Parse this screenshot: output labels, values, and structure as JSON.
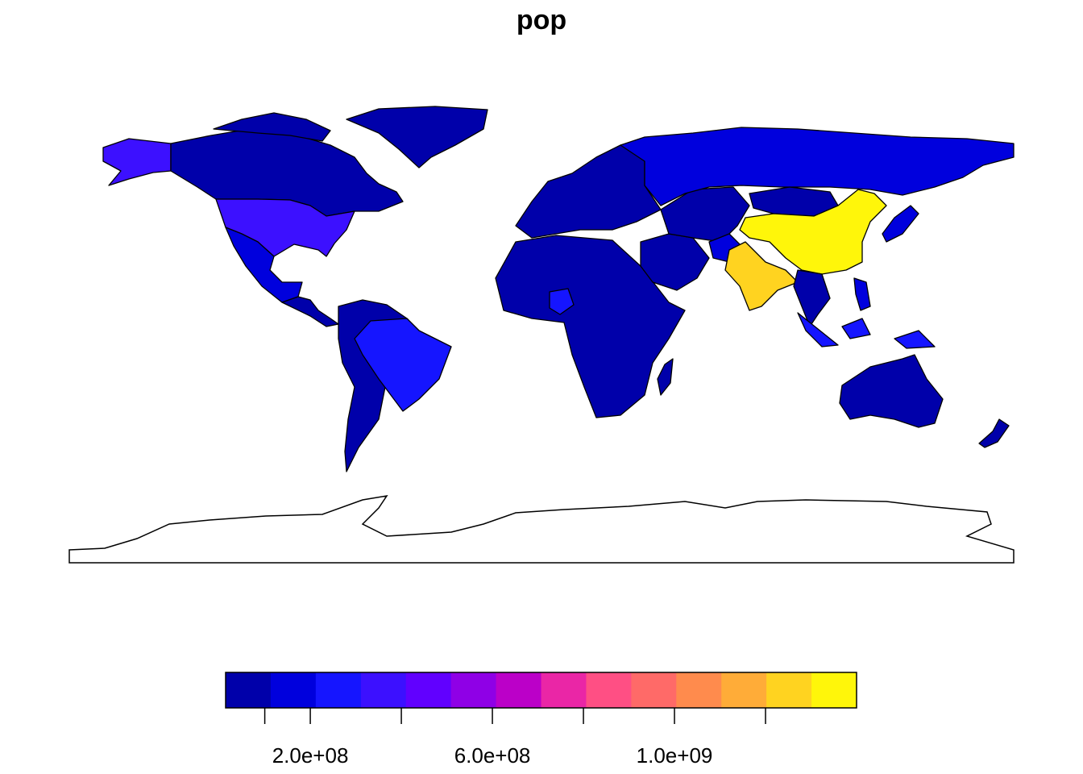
{
  "title": "pop",
  "legend": {
    "colors": [
      "#0000aa",
      "#0000dd",
      "#1515ff",
      "#3c10ff",
      "#6100ff",
      "#8f00e6",
      "#bb00c8",
      "#ea26a6",
      "#ff4f84",
      "#ff6a68",
      "#ff8b4d",
      "#ffac38",
      "#ffd320",
      "#fff60a"
    ],
    "ticks": [
      100000000.0,
      200000000.0,
      400000000.0,
      600000000.0,
      800000000.0,
      1000000000.0,
      1200000000.0
    ],
    "tick_labels": [
      {
        "value": 200000000.0,
        "label": "2.0e+08"
      },
      {
        "value": 600000000.0,
        "label": "6.0e+08"
      },
      {
        "value": 1000000000.0,
        "label": "1.0e+09"
      }
    ],
    "range": [
      14000000.0,
      1400000000.0
    ]
  },
  "colors": {
    "low": "#0000aa",
    "russia": "#0000dd",
    "brazil": "#1515ff",
    "usa": "#3c10ff",
    "india": "#ffd320",
    "china": "#fff60a"
  }
}
